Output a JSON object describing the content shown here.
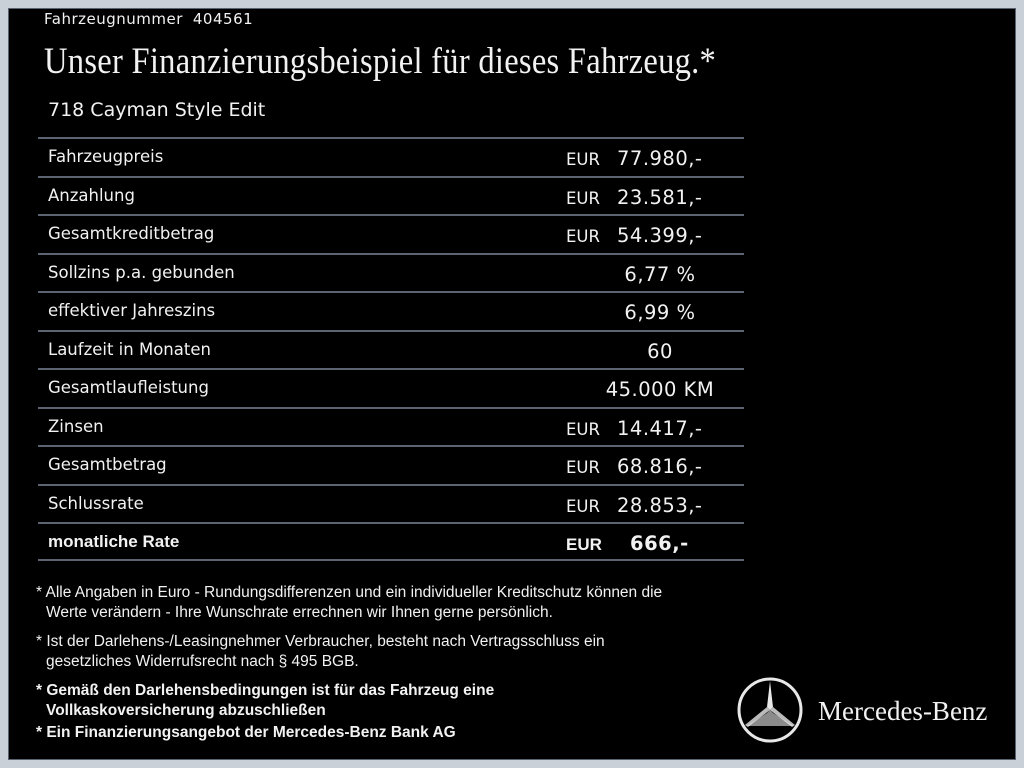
{
  "header": {
    "vehicle_number_label": "Fahrzeugnummer",
    "vehicle_number": "404561",
    "title": "Unser Finanzierungsbeispiel für dieses Fahrzeug.*",
    "model": "718 Cayman Style Edit"
  },
  "table": {
    "rows": [
      {
        "label": "Fahrzeugpreis",
        "currency": "EUR",
        "value": "77.980,-"
      },
      {
        "label": "Anzahlung",
        "currency": "EUR",
        "value": "23.581,-"
      },
      {
        "label": "Gesamtkreditbetrag",
        "currency": "EUR",
        "value": "54.399,-"
      },
      {
        "label": "Sollzins p.a. gebunden",
        "value": "6,77 %"
      },
      {
        "label": "effektiver Jahreszins",
        "value": "6,99 %"
      },
      {
        "label": "Laufzeit in Monaten",
        "value": "60"
      },
      {
        "label": "Gesamtlaufleistung",
        "value": "45.000 KM"
      },
      {
        "label": "Zinsen",
        "currency": "EUR",
        "value": "14.417,-"
      },
      {
        "label": "Gesamtbetrag",
        "currency": "EUR",
        "value": "68.816,-"
      },
      {
        "label": "Schlussrate",
        "currency": "EUR",
        "value": "28.853,-"
      },
      {
        "label": "monatliche Rate",
        "currency": "EUR",
        "value": "666,-",
        "bold": true
      }
    ]
  },
  "footnotes": [
    {
      "lines": [
        "* Alle Angaben in Euro - Rundungsdifferenzen und ein individueller Kreditschutz können die",
        "Werte verändern - Ihre Wunschrate errechnen wir Ihnen gerne persönlich."
      ]
    },
    {
      "lines": [
        "* Ist der Darlehens-/Leasingnehmer Verbraucher, besteht nach Vertragsschluss ein",
        "gesetzliches Widerrufsrecht nach § 495 BGB."
      ]
    },
    {
      "lines": [
        "* Gemäß den Darlehensbedingungen ist für das Fahrzeug eine",
        "Vollkaskoversicherung abzuschließen"
      ],
      "bold": true
    },
    {
      "lines": [
        "* Ein Finanzierungsangebot der Mercedes-Benz Bank AG"
      ],
      "bold": true
    }
  ],
  "brand": "Mercedes-Benz"
}
